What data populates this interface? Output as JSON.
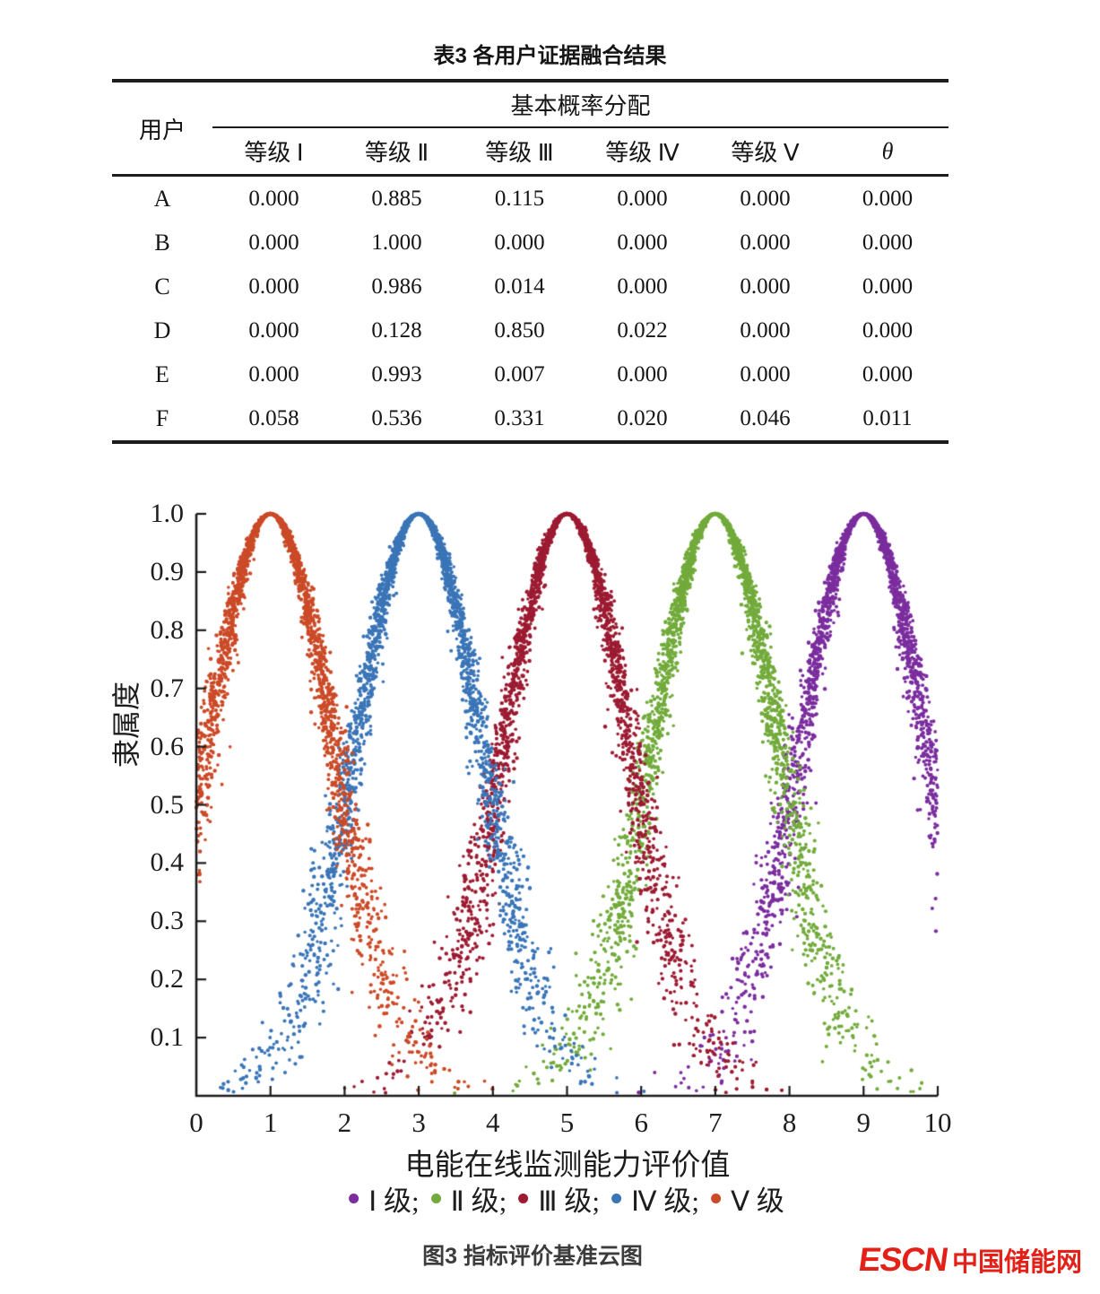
{
  "table": {
    "title": "表3 各用户证据融合结果",
    "header": {
      "user_col": "用户",
      "group_col": "基本概率分配",
      "sub_cols": [
        "等级 Ⅰ",
        "等级 Ⅱ",
        "等级 Ⅲ",
        "等级 Ⅳ",
        "等级 Ⅴ",
        "θ"
      ]
    },
    "rows": [
      {
        "user": "A",
        "values": [
          "0.000",
          "0.885",
          "0.115",
          "0.000",
          "0.000",
          "0.000"
        ]
      },
      {
        "user": "B",
        "values": [
          "0.000",
          "1.000",
          "0.000",
          "0.000",
          "0.000",
          "0.000"
        ]
      },
      {
        "user": "C",
        "values": [
          "0.000",
          "0.986",
          "0.014",
          "0.000",
          "0.000",
          "0.000"
        ]
      },
      {
        "user": "D",
        "values": [
          "0.000",
          "0.128",
          "0.850",
          "0.022",
          "0.000",
          "0.000"
        ]
      },
      {
        "user": "E",
        "values": [
          "0.000",
          "0.993",
          "0.007",
          "0.000",
          "0.000",
          "0.000"
        ]
      },
      {
        "user": "F",
        "values": [
          "0.058",
          "0.536",
          "0.331",
          "0.020",
          "0.046",
          "0.011"
        ]
      }
    ]
  },
  "chart_data": {
    "type": "scatter",
    "title": "",
    "xlabel": "电能在线监测能力评价值",
    "ylabel": "隶属度",
    "xlim": [
      0,
      10
    ],
    "ylim": [
      0,
      1.0
    ],
    "x_ticks": [
      "0",
      "1",
      "2",
      "3",
      "4",
      "5",
      "6",
      "7",
      "8",
      "9",
      "10"
    ],
    "y_ticks": [
      "0.1",
      "0.2",
      "0.3",
      "0.4",
      "0.5",
      "0.6",
      "0.7",
      "0.8",
      "0.9",
      "1.0"
    ],
    "grid": false,
    "legend_position": "below-x-axis",
    "model": "normal cloud droplets: x ~ N(Ex, En'), En' ~ N(En, He), membership mu = exp(-(x-Ex)^2/(2*En'^2)); each cloud peaks at mu = 1.0 over its Ex",
    "series": [
      {
        "name": "Ⅰ级",
        "color": "#7b2d9e",
        "Ex": 9,
        "En": 0.85,
        "He": 0.09,
        "n": 2600,
        "peak_mu": 1.0
      },
      {
        "name": "Ⅱ级",
        "color": "#72ab3b",
        "Ex": 7,
        "En": 0.85,
        "He": 0.09,
        "n": 2600,
        "peak_mu": 1.0
      },
      {
        "name": "Ⅲ级",
        "color": "#9c1b32",
        "Ex": 5,
        "En": 0.85,
        "He": 0.09,
        "n": 2600,
        "peak_mu": 1.0
      },
      {
        "name": "Ⅳ级",
        "color": "#3a75b7",
        "Ex": 3,
        "En": 0.85,
        "He": 0.09,
        "n": 2600,
        "peak_mu": 1.0
      },
      {
        "name": "Ⅴ级",
        "color": "#cb4a27",
        "Ex": 1,
        "En": 0.85,
        "He": 0.09,
        "n": 2600,
        "peak_mu": 1.0
      }
    ],
    "legend": [
      {
        "label": "Ⅰ 级;",
        "color": "#7b2d9e"
      },
      {
        "label": "Ⅱ 级;",
        "color": "#72ab3b"
      },
      {
        "label": "Ⅲ 级;",
        "color": "#9c1b32"
      },
      {
        "label": "Ⅳ 级;",
        "color": "#3a75b7"
      },
      {
        "label": "Ⅴ 级",
        "color": "#cb4a27"
      }
    ]
  },
  "caption": "图3 指标评价基准云图",
  "logo": {
    "text_en": "ESCN",
    "text_cn": "中国储能网",
    "color": "#e32119"
  }
}
